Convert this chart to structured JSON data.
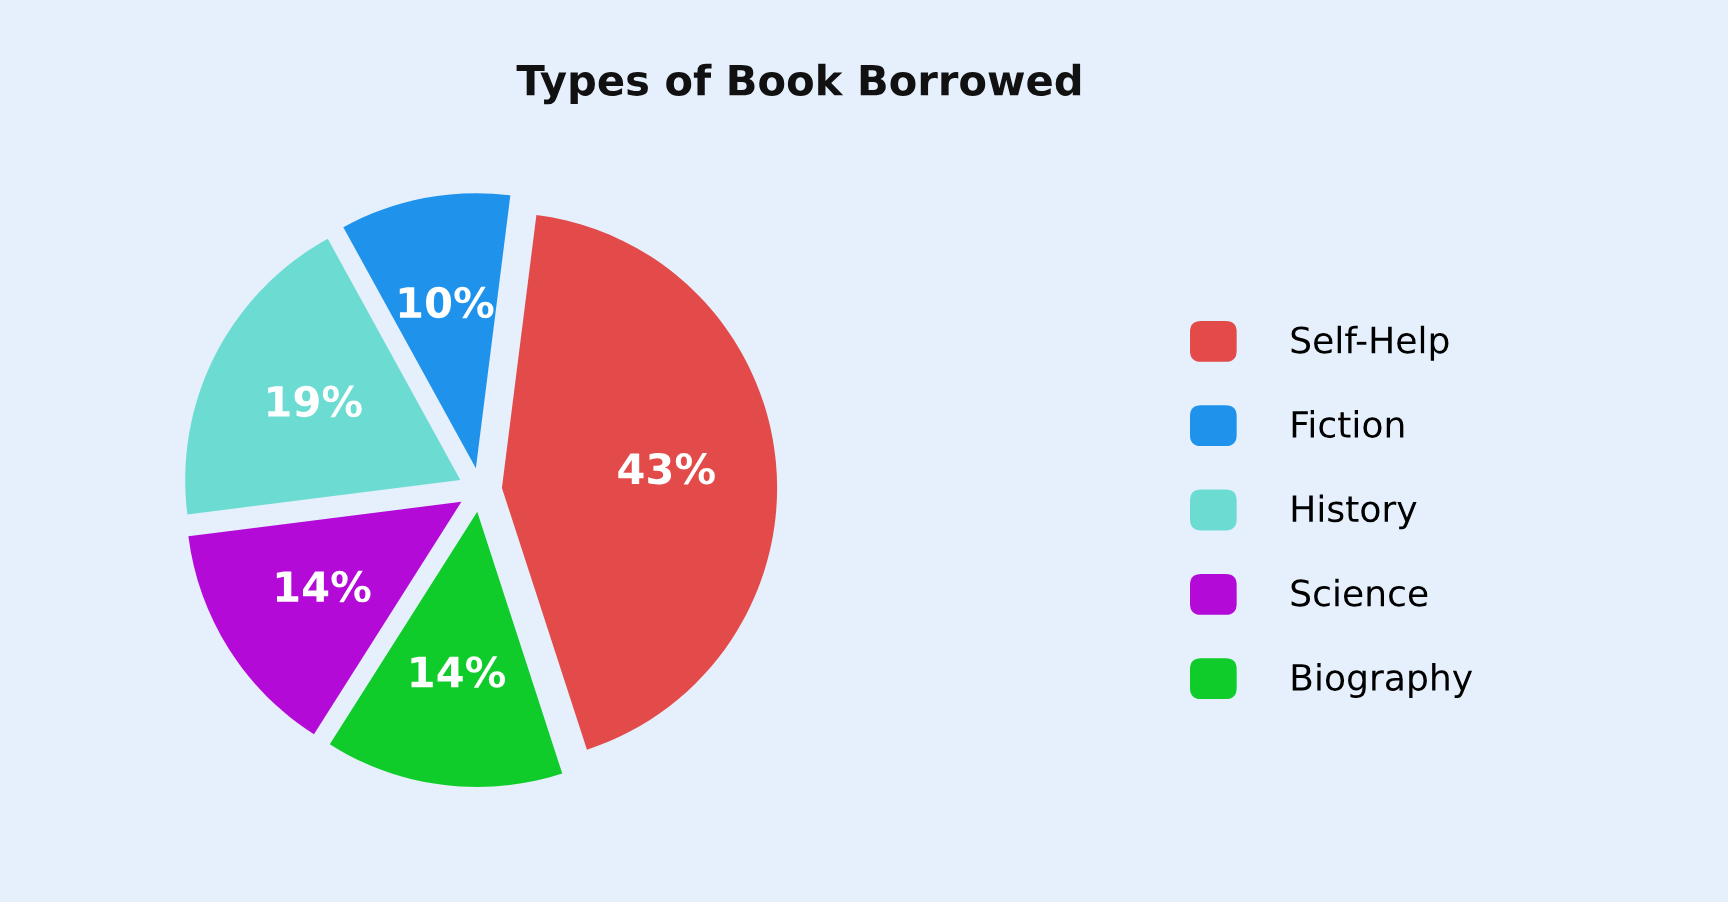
{
  "chart_data": {
    "type": "pie",
    "title": "Types of Book Borrowed",
    "categories": [
      "Self-Help",
      "Fiction",
      "History",
      "Science",
      "Biography"
    ],
    "values": [
      43,
      10,
      19,
      14,
      14
    ],
    "colors": [
      "#e24b4a",
      "#1f93ec",
      "#6cdcd3",
      "#b40ad8",
      "#0fcc2b"
    ],
    "value_labels": [
      "43%",
      "10%",
      "19%",
      "14%",
      "14%"
    ],
    "legend": "right"
  }
}
